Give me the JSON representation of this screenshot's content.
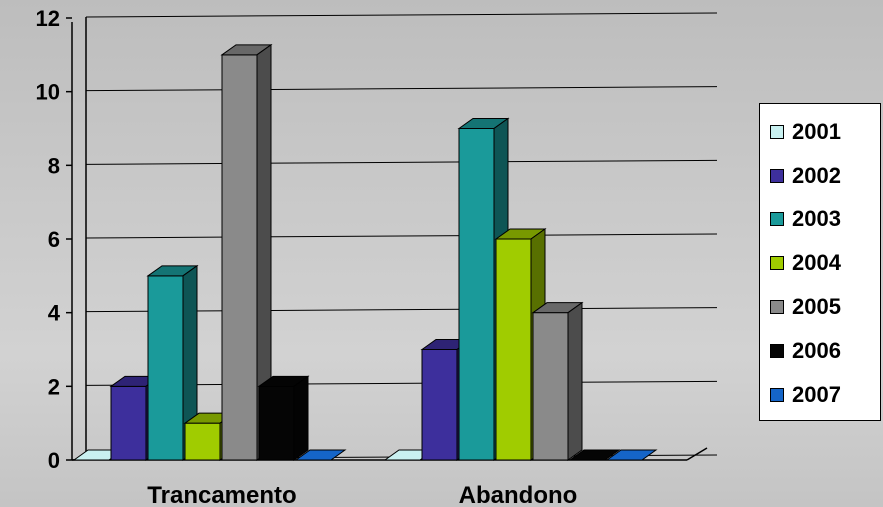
{
  "chart_data": {
    "type": "bar",
    "style": "3d-clustered-column",
    "categories": [
      "Trancamento",
      "Abandono"
    ],
    "series": [
      {
        "name": "2001",
        "color": "#c9f1f1",
        "values": [
          0,
          0
        ]
      },
      {
        "name": "2002",
        "color": "#3d2f9c",
        "values": [
          2,
          3
        ]
      },
      {
        "name": "2003",
        "color": "#1a9a9a",
        "values": [
          5,
          9
        ]
      },
      {
        "name": "2004",
        "color": "#a0cc00",
        "values": [
          1,
          6
        ]
      },
      {
        "name": "2005",
        "color": "#8a8a8a",
        "values": [
          11,
          4
        ]
      },
      {
        "name": "2006",
        "color": "#050505",
        "values": [
          2,
          0
        ]
      },
      {
        "name": "2007",
        "color": "#1565c8",
        "values": [
          0,
          0
        ]
      }
    ],
    "ylim": [
      0,
      12
    ],
    "yticks": [
      "0",
      "2",
      "4",
      "6",
      "8",
      "10",
      "12"
    ],
    "grid": true,
    "legend_position": "right"
  }
}
